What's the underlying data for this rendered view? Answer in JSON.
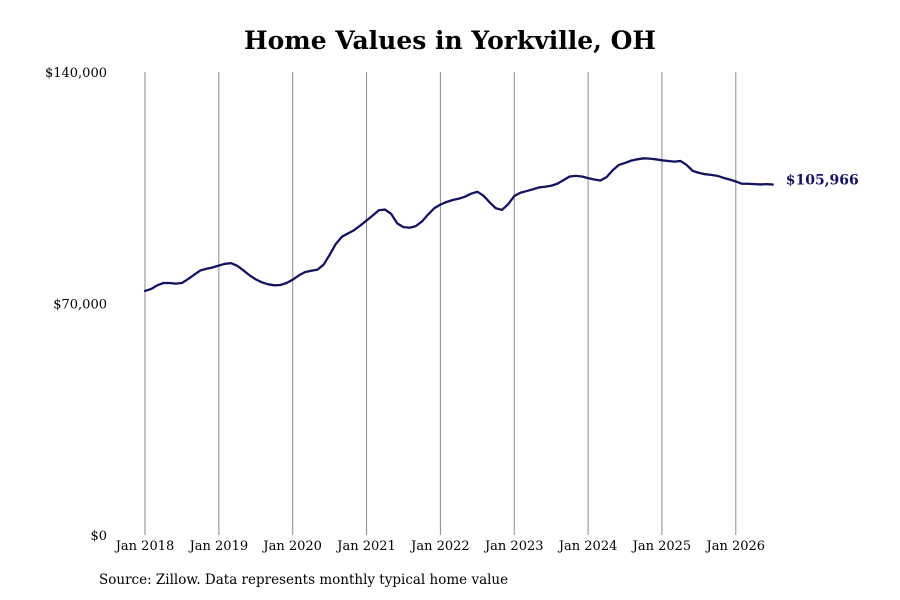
{
  "chart_data": {
    "type": "line",
    "title": "Home Values in Yorkville, OH",
    "source": "Source: Zillow. Data represents monthly typical home value",
    "xlabel": "",
    "ylabel": "",
    "ylim": [
      0,
      140000
    ],
    "xlim": [
      "2018-01",
      "2026-07"
    ],
    "y_ticks": [
      0,
      70000,
      140000
    ],
    "y_tick_labels": [
      "$0",
      "$70,000",
      "$140,000"
    ],
    "x_ticks": [
      "2018-01",
      "2019-01",
      "2020-01",
      "2021-01",
      "2022-01",
      "2023-01",
      "2024-01",
      "2025-01",
      "2026-01"
    ],
    "x_tick_labels": [
      "Jan 2018",
      "Jan 2019",
      "Jan 2020",
      "Jan 2021",
      "Jan 2022",
      "Jan 2023",
      "Jan 2024",
      "Jan 2025",
      "Jan 2026"
    ],
    "grid": "vertical",
    "line_color": "#14145e",
    "end_label": "$105,966",
    "series": [
      {
        "x": [
          "2018-01",
          "2018-02",
          "2018-03",
          "2018-04",
          "2018-05",
          "2018-06",
          "2018-07",
          "2018-08",
          "2018-09",
          "2018-10",
          "2018-11",
          "2018-12",
          "2019-01",
          "2019-02",
          "2019-03",
          "2019-04",
          "2019-05",
          "2019-06",
          "2019-07",
          "2019-08",
          "2019-09",
          "2019-10",
          "2019-11",
          "2019-12",
          "2020-01",
          "2020-02",
          "2020-03",
          "2020-04",
          "2020-05",
          "2020-06",
          "2020-07",
          "2020-08",
          "2020-09",
          "2020-10",
          "2020-11",
          "2020-12",
          "2021-01",
          "2021-02",
          "2021-03",
          "2021-04",
          "2021-05",
          "2021-06",
          "2021-07",
          "2021-08",
          "2021-09",
          "2021-10",
          "2021-11",
          "2021-12",
          "2022-01",
          "2022-02",
          "2022-03",
          "2022-04",
          "2022-05",
          "2022-06",
          "2022-07",
          "2022-08",
          "2022-09",
          "2022-10",
          "2022-11",
          "2022-12",
          "2023-01",
          "2023-02",
          "2023-03",
          "2023-04",
          "2023-05",
          "2023-06",
          "2023-07",
          "2023-08",
          "2023-09",
          "2023-10",
          "2023-11",
          "2023-12",
          "2024-01",
          "2024-02",
          "2024-03",
          "2024-04",
          "2024-05",
          "2024-06",
          "2024-07",
          "2024-08",
          "2024-09",
          "2024-10",
          "2024-11",
          "2024-12",
          "2025-01",
          "2025-02",
          "2025-03",
          "2025-04",
          "2025-05",
          "2025-06",
          "2025-07",
          "2025-08",
          "2025-09",
          "2025-10",
          "2025-11",
          "2025-12",
          "2026-01",
          "2026-02",
          "2026-03",
          "2026-04",
          "2026-05",
          "2026-06",
          "2026-07"
        ],
        "values": [
          73800,
          74400,
          75500,
          76200,
          76200,
          76000,
          76200,
          77400,
          78700,
          80000,
          80500,
          80900,
          81500,
          82000,
          82200,
          81400,
          80000,
          78500,
          77300,
          76400,
          75800,
          75500,
          75600,
          76200,
          77200,
          78500,
          79500,
          79900,
          80200,
          81700,
          84700,
          88000,
          90200,
          91200,
          92200,
          93600,
          95100,
          96600,
          98200,
          98400,
          97100,
          94200,
          93100,
          92900,
          93400,
          94800,
          96900,
          98800,
          99900,
          100700,
          101300,
          101700,
          102300,
          103200,
          103800,
          102600,
          100600,
          98800,
          98300,
          100000,
          102500,
          103500,
          104000,
          104500,
          105100,
          105300,
          105600,
          106200,
          107300,
          108400,
          108600,
          108400,
          107900,
          107500,
          107200,
          108200,
          110300,
          111900,
          112500,
          113200,
          113600,
          113900,
          113800,
          113600,
          113300,
          113100,
          112900,
          113100,
          111900,
          110100,
          109500,
          109100,
          108900,
          108600,
          108000,
          107500,
          106900,
          106200,
          106200,
          106100,
          106000,
          106100,
          105966
        ]
      }
    ]
  }
}
